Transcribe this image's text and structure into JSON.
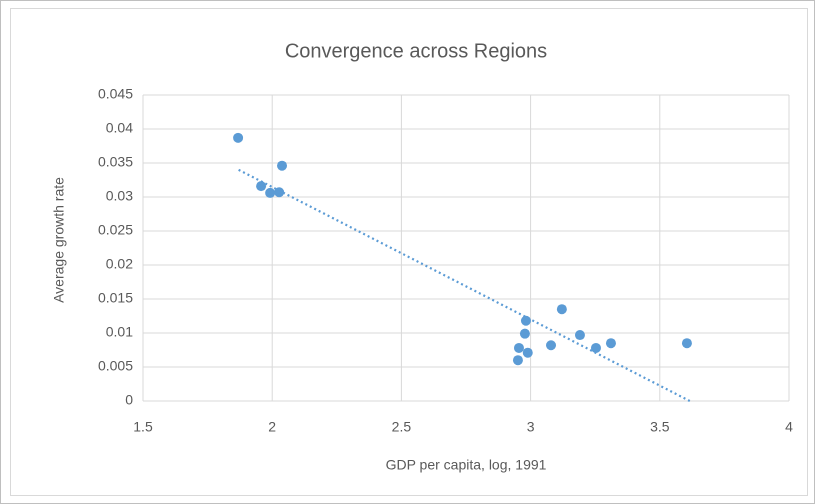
{
  "chart_data": {
    "type": "scatter",
    "title": "Convergence across Regions",
    "x_label": "GDP per capita, log, 1991",
    "y_label": "Average growth rate",
    "series": [
      {
        "color": "#5b9bd5",
        "x": [
          1.868,
          1.957,
          1.992,
          2.027,
          2.038,
          2.951,
          2.955,
          2.978,
          2.982,
          2.989,
          3.079,
          3.121,
          3.191,
          3.253,
          3.311,
          3.605
        ],
        "values": [
          0.0387,
          0.0316,
          0.0306,
          0.0307,
          0.0346,
          0.006,
          0.0078,
          0.0099,
          0.0118,
          0.0071,
          0.0082,
          0.0135,
          0.0097,
          0.0078,
          0.0085,
          0.0085
        ]
      }
    ],
    "trendline": {
      "x": [
        1.87,
        3.616
      ],
      "values": [
        0.034,
        0
      ],
      "color": "#5b9bd5"
    },
    "xlim": [
      1.5,
      4
    ],
    "xticks": [
      1.5,
      2,
      2.5,
      3,
      3.5,
      4
    ],
    "ylim": [
      0,
      0.045
    ],
    "yticks": [
      0,
      0.005,
      0.01,
      0.015,
      0.02,
      0.025,
      0.03,
      0.035,
      0.04,
      0.045
    ],
    "grid": true
  }
}
